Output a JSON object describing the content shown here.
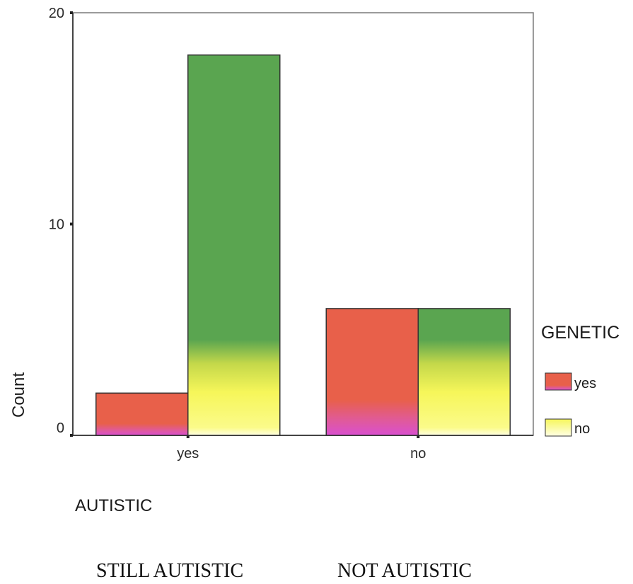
{
  "chart_data": {
    "type": "bar",
    "ylabel": "Count",
    "xlabel": "AUTISTIC",
    "categories": [
      "yes",
      "no"
    ],
    "ylim": [
      0,
      20
    ],
    "yticks": [
      0,
      10,
      20
    ],
    "grid": false,
    "legend": {
      "title": "GENETIC",
      "position": "right",
      "entries": [
        "yes",
        "no"
      ]
    },
    "series": [
      {
        "name": "yes",
        "values": [
          2,
          6
        ],
        "color": "#e8604a"
      },
      {
        "name": "no",
        "values": [
          18,
          6
        ],
        "color": "#5aa550"
      }
    ],
    "gradient_colors": {
      "bottom_yes": "#d94fd0",
      "bottom_no": "#ffffe0",
      "mid_no": "#f6f65a",
      "top_no": "#5aa550"
    }
  },
  "captions": [
    "STILL AUTISTIC",
    "NOT AUTISTIC"
  ]
}
